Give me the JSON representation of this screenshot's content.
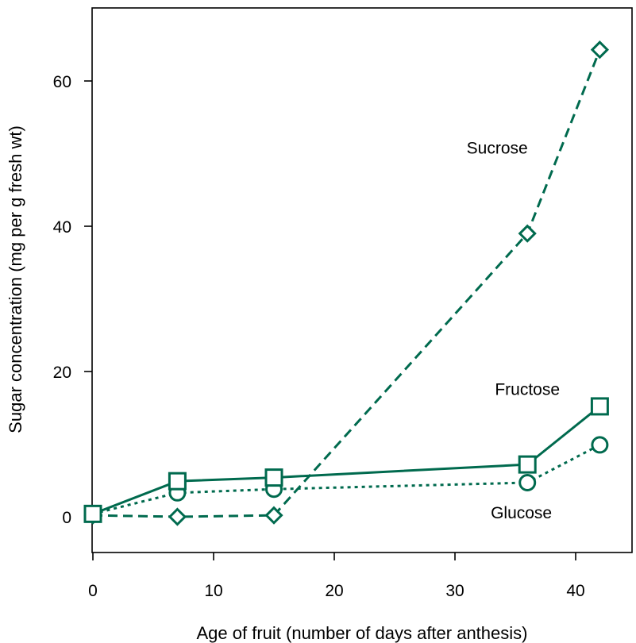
{
  "chart_data": {
    "type": "line",
    "title": "",
    "xlabel": "Age of fruit (number of days after anthesis)",
    "ylabel": "Sugar concentration (mg per g fresh wt)",
    "xlim": [
      0,
      45
    ],
    "ylim": [
      -5,
      70
    ],
    "xticks": [
      0,
      10,
      20,
      30,
      40
    ],
    "yticks": [
      0,
      20,
      40,
      60
    ],
    "x_tick_labels": [
      "0",
      "10",
      "20",
      "30",
      "40"
    ],
    "y_tick_labels": [
      "0",
      "20",
      "40",
      "60"
    ],
    "grid": false,
    "color": "#006a4e",
    "series": [
      {
        "name": "Sucrose",
        "marker": "diamond",
        "line": "dashed",
        "x": [
          0,
          7,
          15,
          36,
          42
        ],
        "values": [
          0.2,
          0,
          0.2,
          39,
          64.3
        ],
        "label_anchor": [
          33.5,
          50
        ]
      },
      {
        "name": "Fructose",
        "marker": "square",
        "line": "solid",
        "x": [
          0,
          7,
          15,
          36,
          42
        ],
        "values": [
          0.4,
          4.9,
          5.4,
          7.2,
          15.2
        ],
        "label_anchor": [
          36,
          16.8
        ]
      },
      {
        "name": "Glucose",
        "marker": "circle",
        "line": "dotted",
        "x": [
          0,
          7,
          15,
          36,
          42
        ],
        "values": [
          0.4,
          3.3,
          3.8,
          4.7,
          9.9
        ],
        "label_anchor": [
          35.5,
          -0.2
        ]
      }
    ]
  }
}
